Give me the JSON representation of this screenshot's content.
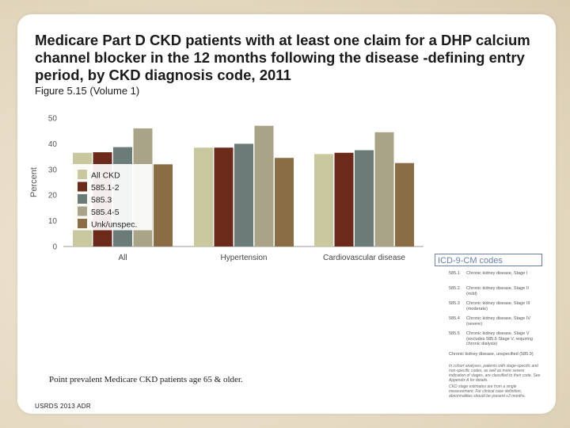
{
  "title": "Medicare Part D CKD patients with at least one claim for a DHP calcium channel blocker in the 12 months following the disease -defining entry period, by CKD diagnosis code, 2011",
  "subtitle": "Figure 5.15 (Volume 1)",
  "footnote": "Point prevalent Medicare CKD patients age 65 & older.",
  "source": "USRDS 2013 ADR",
  "colors": {
    "series": [
      "#c9c79d",
      "#6b2a1a",
      "#6a7b78",
      "#a9a488",
      "#8a6d45"
    ]
  },
  "chart_data": {
    "type": "bar",
    "ylabel": "Percent",
    "xlabel": "",
    "ylim": [
      0,
      50
    ],
    "yticks": [
      0,
      10,
      20,
      30,
      40,
      50
    ],
    "categories": [
      "All",
      "Hypertension",
      "Cardiovascular disease"
    ],
    "series": [
      {
        "name": "All CKD",
        "values": [
          36.5,
          38.5,
          36
        ]
      },
      {
        "name": "585.1-2",
        "values": [
          36.7,
          38.5,
          36.5
        ]
      },
      {
        "name": "585.3",
        "values": [
          38.7,
          40,
          37.5
        ]
      },
      {
        "name": "585.4-5",
        "values": [
          46,
          47,
          44.5
        ]
      },
      {
        "name": "Unk/unspec.",
        "values": [
          32,
          34.5,
          32.5
        ]
      }
    ],
    "legend_position": "inside-left",
    "grid": false
  },
  "icd": {
    "title": "ICD-9-CM codes",
    "rows": [
      {
        "code": "585.1",
        "desc": "Chronic kidney disease, Stage I"
      },
      {
        "code": "585.2",
        "desc": "Chronic kidney disease, Stage II (mild)"
      },
      {
        "code": "585.3",
        "desc": "Chronic kidney disease, Stage III (moderate)"
      },
      {
        "code": "585.4",
        "desc": "Chronic kidney disease, Stage IV (severe)"
      },
      {
        "code": "585.5",
        "desc": "Chronic kidney disease, Stage V (excludes 585.6 Stage V, requiring chronic dialysis)"
      }
    ],
    "extra": "Chronic kidney disease, unspecified (585.9)",
    "note1": "In cohort analyses, patients with stage-specific and non-specific codes, as well as more severe indication of stages, are classified to their code. See Appendix A for details.",
    "note2": "CKD stage estimates are from a single measurement. For clinical case definition, abnormalities should be present ≥3 months."
  }
}
